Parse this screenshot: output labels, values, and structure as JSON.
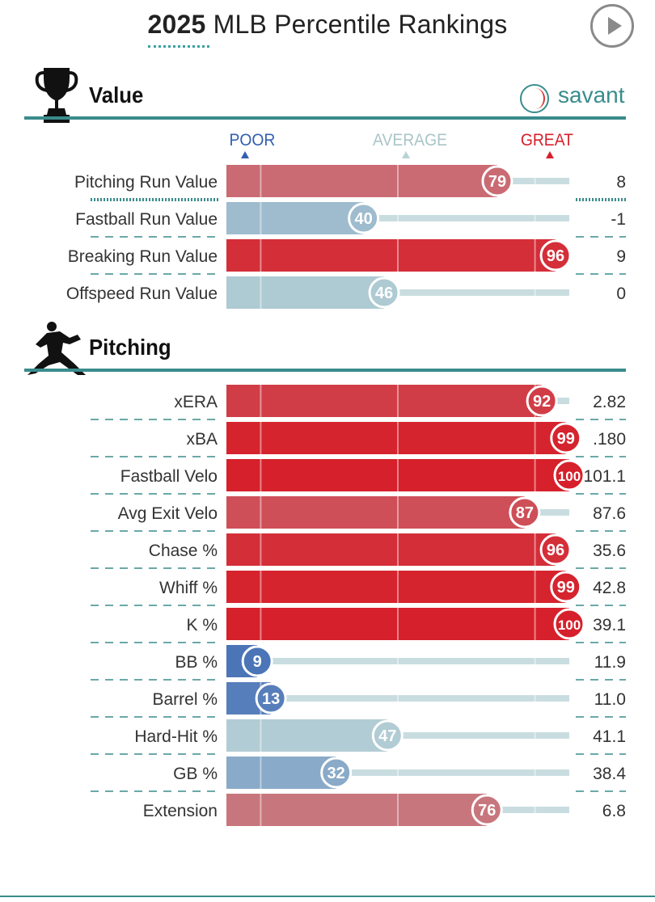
{
  "header": {
    "year": "2025",
    "title_rest": "MLB Percentile Rankings",
    "brand": "savant"
  },
  "scale": {
    "poor": "POOR",
    "average": "AVERAGE",
    "great": "GREAT"
  },
  "sections": [
    {
      "title": "Value",
      "icon": "trophy-icon"
    },
    {
      "title": "Pitching",
      "icon": "pitcher-icon"
    }
  ],
  "colors": {
    "accent": "#3a8c8c",
    "poor": "#3360b0",
    "average": "#b9d3d6",
    "great": "#d6202b"
  },
  "chart_data": {
    "type": "bar",
    "title": "2025 MLB Percentile Rankings",
    "xlim": [
      0,
      100
    ],
    "groups": [
      {
        "name": "Value",
        "rows": [
          {
            "label": "Pitching Run Value",
            "percentile": 79,
            "value": "8"
          },
          {
            "label": "Fastball Run Value",
            "percentile": 40,
            "value": "-1"
          },
          {
            "label": "Breaking Run Value",
            "percentile": 96,
            "value": "9"
          },
          {
            "label": "Offspeed Run Value",
            "percentile": 46,
            "value": "0"
          }
        ]
      },
      {
        "name": "Pitching",
        "rows": [
          {
            "label": "xERA",
            "percentile": 92,
            "value": "2.82"
          },
          {
            "label": "xBA",
            "percentile": 99,
            "value": ".180"
          },
          {
            "label": "Fastball Velo",
            "percentile": 100,
            "value": "101.1"
          },
          {
            "label": "Avg Exit Velo",
            "percentile": 87,
            "value": "87.6"
          },
          {
            "label": "Chase %",
            "percentile": 96,
            "value": "35.6"
          },
          {
            "label": "Whiff %",
            "percentile": 99,
            "value": "42.8"
          },
          {
            "label": "K %",
            "percentile": 100,
            "value": "39.1"
          },
          {
            "label": "BB %",
            "percentile": 9,
            "value": "11.9"
          },
          {
            "label": "Barrel %",
            "percentile": 13,
            "value": "11.0"
          },
          {
            "label": "Hard-Hit %",
            "percentile": 47,
            "value": "41.1"
          },
          {
            "label": "GB %",
            "percentile": 32,
            "value": "38.4"
          },
          {
            "label": "Extension",
            "percentile": 76,
            "value": "6.8"
          }
        ]
      }
    ]
  }
}
